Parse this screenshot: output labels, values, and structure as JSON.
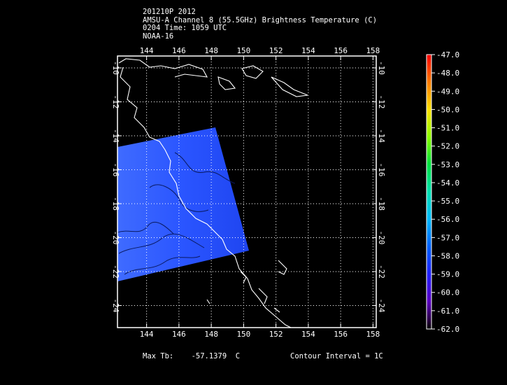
{
  "header": {
    "line1": "201210P 2012",
    "line2": "AMSU-A Channel 8 (55.5GHz) Brightness Temperature (C)",
    "line3": "0204 Time: 1059 UTC",
    "line4": "NOAA-16"
  },
  "map": {
    "lon_range": [
      142.2,
      158.2
    ],
    "lat_range": [
      -9.3,
      -25.3
    ],
    "lon_ticks": [
      "144",
      "146",
      "148",
      "150",
      "152",
      "154",
      "156",
      "158"
    ],
    "lat_ticks": [
      "-10",
      "-12",
      "-14",
      "-16",
      "-18",
      "-20",
      "-22",
      "-24"
    ],
    "swath_color": "#2a55ff",
    "coastline_color": "#ffffff",
    "gridline_style": "dotted"
  },
  "colorbar": {
    "labels": [
      "-47.0",
      "-48.0",
      "-49.0",
      "-50.0",
      "-51.0",
      "-52.0",
      "-53.0",
      "-54.0",
      "-55.0",
      "-56.0",
      "-57.0",
      "-58.0",
      "-59.0",
      "-60.0",
      "-61.0",
      "-62.0"
    ]
  },
  "footer": {
    "max_tb_label": "Max Tb:",
    "max_tb_value": "-57.1379",
    "max_tb_unit": "C",
    "contour_interval": "Contour Interval = 1C"
  }
}
